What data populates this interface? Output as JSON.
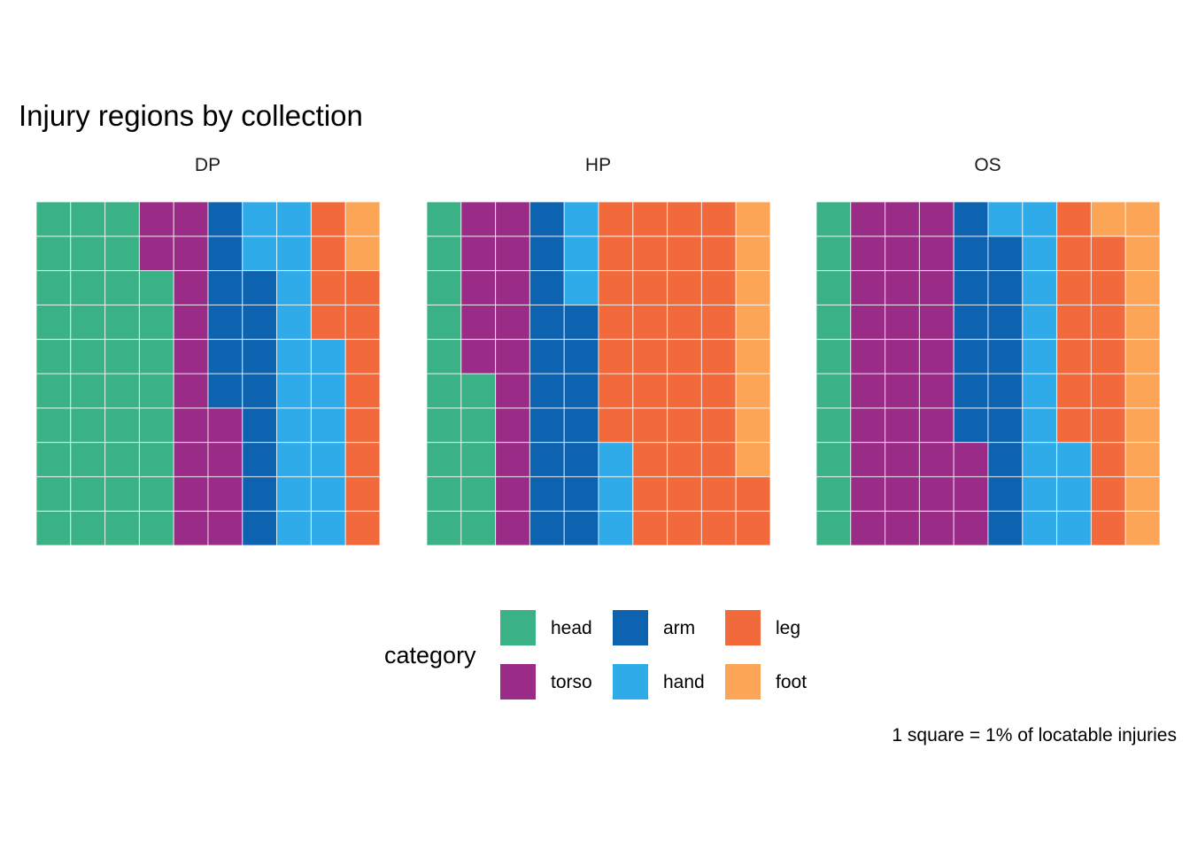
{
  "chart_data": {
    "type": "waffle",
    "title": "Injury regions by collection",
    "caption": "1 square = 1% of locatable injuries",
    "grid": {
      "rows": 10,
      "cols": 10,
      "fill_order": "column-wise, bottom to top"
    },
    "legend": {
      "title": "category",
      "placement": "bottom",
      "entries": [
        {
          "label": "head",
          "color": "#3BB186"
        },
        {
          "label": "torso",
          "color": "#9A2C87"
        },
        {
          "label": "arm",
          "color": "#0D63AF"
        },
        {
          "label": "hand",
          "color": "#2FABE9"
        },
        {
          "label": "leg",
          "color": "#F26A3C"
        },
        {
          "label": "foot",
          "color": "#FCA556"
        }
      ]
    },
    "categories": [
      "head",
      "torso",
      "arm",
      "hand",
      "leg",
      "foot"
    ],
    "series": [
      {
        "name": "DP",
        "values": [
          38,
          16,
          14,
          18,
          12,
          2
        ]
      },
      {
        "name": "HP",
        "values": [
          15,
          15,
          17,
          6,
          39,
          8
        ]
      },
      {
        "name": "OS",
        "values": [
          10,
          33,
          16,
          14,
          16,
          11
        ]
      }
    ]
  }
}
